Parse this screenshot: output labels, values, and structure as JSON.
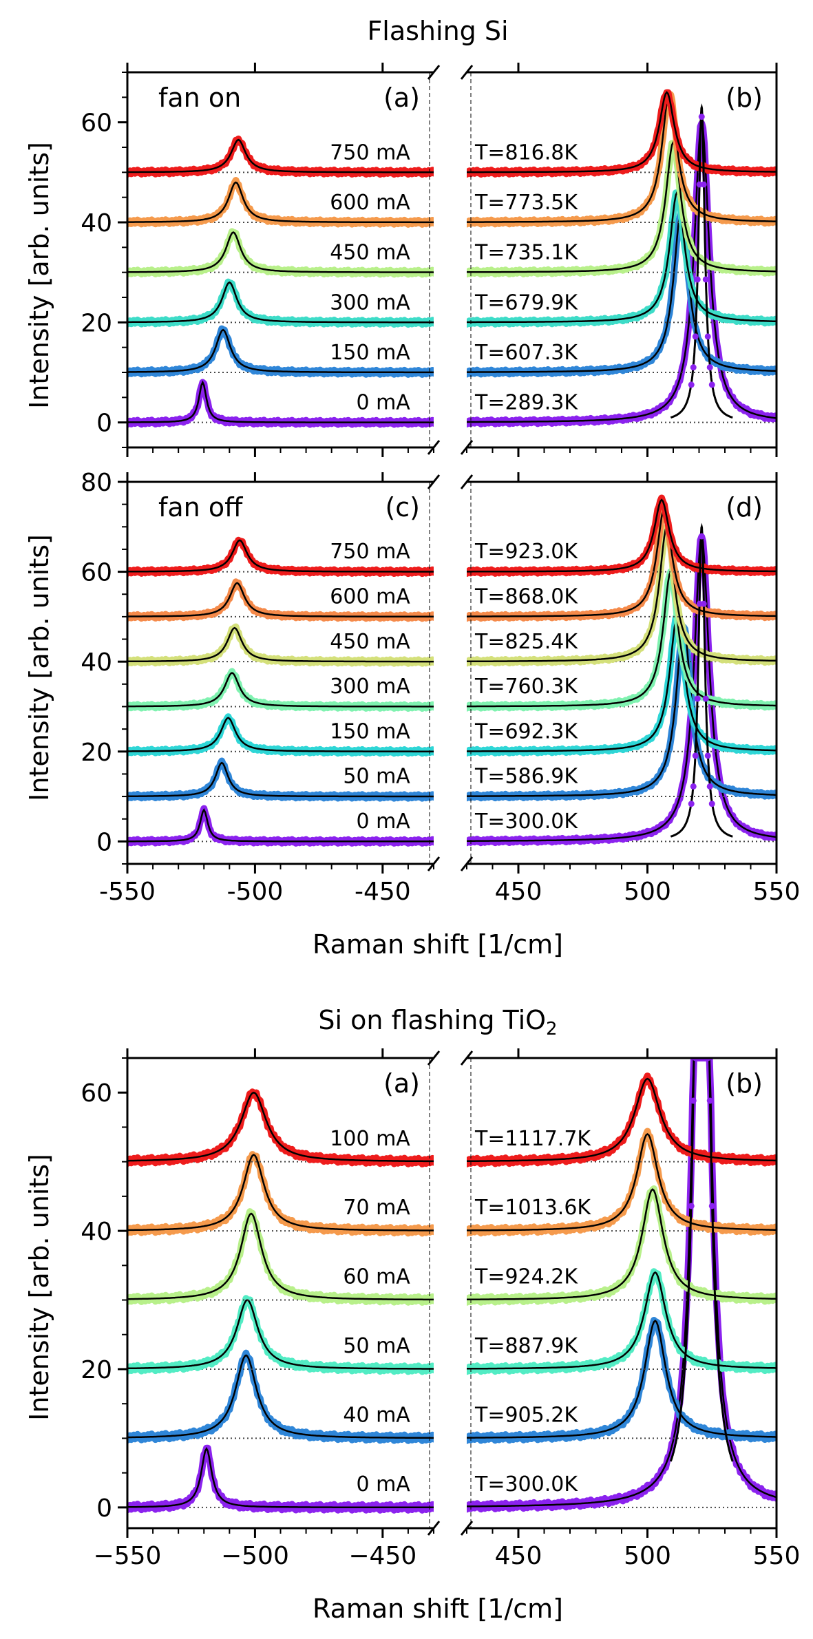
{
  "figure": {
    "top_title": "Flashing Si",
    "bottom_title": "Si on flashing TiO",
    "bottom_title_sub": "2",
    "xlabel": "Raman shift [1/cm]",
    "ylabel": "Intensity [arb. units]"
  },
  "chart_data": [
    {
      "type": "line",
      "group": "Flashing Si",
      "panel": "(a)",
      "note": "fan on",
      "xlim": [
        -550,
        -430
      ],
      "ylim": [
        -5,
        70
      ],
      "yticks": [
        0,
        20,
        40,
        60
      ],
      "xticks": [
        -550,
        -500,
        -450
      ],
      "xticklabels": [
        "-550",
        "-500",
        "-450"
      ],
      "show_xticklabels": false,
      "series": [
        {
          "name": "0 mA",
          "offset": 0,
          "peak": -520.5,
          "hwhm": 1.8,
          "amp": 8,
          "color": "#8b22ee"
        },
        {
          "name": "150 mA",
          "offset": 10,
          "peak": -512.5,
          "hwhm": 3.5,
          "amp": 8.5,
          "color": "#2f86d8"
        },
        {
          "name": "300 mA",
          "offset": 20,
          "peak": -510.0,
          "hwhm": 3.5,
          "amp": 8,
          "color": "#3ddcc8"
        },
        {
          "name": "450 mA",
          "offset": 30,
          "peak": -508.5,
          "hwhm": 3.5,
          "amp": 8,
          "color": "#b8f08a"
        },
        {
          "name": "600 mA",
          "offset": 40,
          "peak": -507.5,
          "hwhm": 3.5,
          "amp": 8,
          "color": "#f59a4c"
        },
        {
          "name": "750 mA",
          "offset": 50,
          "peak": -506.5,
          "hwhm": 3.5,
          "amp": 6.5,
          "color": "#ee1c1c"
        }
      ]
    },
    {
      "type": "line",
      "group": "Flashing Si",
      "panel": "(b)",
      "xlim": [
        430,
        550
      ],
      "ylim": [
        -5,
        70
      ],
      "xticks": [
        450,
        500,
        550
      ],
      "xticklabels": [
        "450",
        "500",
        "550"
      ],
      "show_xticklabels": false,
      "reference_peak": {
        "center": 521,
        "hwhm": 1.5,
        "amp": 63
      },
      "series": [
        {
          "name": "T=289.3K",
          "offset": 0,
          "peak": 521.0,
          "hwhm": 3.5,
          "amp": 60,
          "color": "#8b22ee"
        },
        {
          "name": "T=607.3K",
          "offset": 10,
          "peak": 513.0,
          "hwhm": 3.5,
          "amp": 32,
          "color": "#2f86d8"
        },
        {
          "name": "T=679.9K",
          "offset": 20,
          "peak": 511.5,
          "hwhm": 3.5,
          "amp": 26,
          "color": "#3ddcc8"
        },
        {
          "name": "T=735.1K",
          "offset": 30,
          "peak": 510.0,
          "hwhm": 3.5,
          "amp": 26,
          "color": "#b8f08a"
        },
        {
          "name": "T=773.5K",
          "offset": 40,
          "peak": 508.5,
          "hwhm": 3.5,
          "amp": 26,
          "color": "#f59a4c"
        },
        {
          "name": "T=816.8K",
          "offset": 50,
          "peak": 507.5,
          "hwhm": 3.5,
          "amp": 16,
          "color": "#ee1c1c"
        }
      ]
    },
    {
      "type": "line",
      "group": "Flashing Si",
      "panel": "(c)",
      "note": "fan off",
      "xlim": [
        -550,
        -430
      ],
      "ylim": [
        -5,
        80
      ],
      "yticks": [
        0,
        20,
        40,
        60,
        80
      ],
      "xticks": [
        -550,
        -500,
        -450
      ],
      "xticklabels": [
        "-550",
        "-500",
        "-450"
      ],
      "show_xticklabels": true,
      "series": [
        {
          "name": "0 mA",
          "offset": 0,
          "peak": -520.0,
          "hwhm": 1.8,
          "amp": 7,
          "color": "#8b22ee"
        },
        {
          "name": "50 mA",
          "offset": 10,
          "peak": -513.0,
          "hwhm": 3.0,
          "amp": 7.5,
          "color": "#2f86d8"
        },
        {
          "name": "150 mA",
          "offset": 20,
          "peak": -510.5,
          "hwhm": 3.5,
          "amp": 7.5,
          "color": "#2ed6d6"
        },
        {
          "name": "300 mA",
          "offset": 30,
          "peak": -509.0,
          "hwhm": 3.5,
          "amp": 7.5,
          "color": "#7ff2b0"
        },
        {
          "name": "450 mA",
          "offset": 40,
          "peak": -508.0,
          "hwhm": 3.5,
          "amp": 7.5,
          "color": "#d4e07a"
        },
        {
          "name": "600 mA",
          "offset": 50,
          "peak": -507.0,
          "hwhm": 3.5,
          "amp": 7.5,
          "color": "#f58a4a"
        },
        {
          "name": "750 mA",
          "offset": 60,
          "peak": -506.0,
          "hwhm": 3.5,
          "amp": 7,
          "color": "#ee1c1c"
        }
      ]
    },
    {
      "type": "line",
      "group": "Flashing Si",
      "panel": "(d)",
      "xlim": [
        430,
        550
      ],
      "ylim": [
        -5,
        80
      ],
      "xticks": [
        450,
        500,
        550
      ],
      "xticklabels": [
        "450",
        "500",
        "550"
      ],
      "show_xticklabels": true,
      "reference_peak": {
        "center": 521,
        "hwhm": 1.5,
        "amp": 70
      },
      "series": [
        {
          "name": "T=300.0K",
          "offset": 0,
          "peak": 521.0,
          "hwhm": 3.5,
          "amp": 68,
          "color": "#8b22ee"
        },
        {
          "name": "T=586.9K",
          "offset": 10,
          "peak": 514.0,
          "hwhm": 3.5,
          "amp": 38,
          "color": "#2f86d8"
        },
        {
          "name": "T=692.3K",
          "offset": 20,
          "peak": 511.5,
          "hwhm": 3.5,
          "amp": 30,
          "color": "#2ed6d6"
        },
        {
          "name": "T=760.3K",
          "offset": 30,
          "peak": 509.0,
          "hwhm": 3.5,
          "amp": 30,
          "color": "#7ff2b0"
        },
        {
          "name": "T=825.4K",
          "offset": 40,
          "peak": 507.5,
          "hwhm": 3.5,
          "amp": 30,
          "color": "#d4e07a"
        },
        {
          "name": "T=868.0K",
          "offset": 50,
          "peak": 506.5,
          "hwhm": 3.5,
          "amp": 24,
          "color": "#f58a4a"
        },
        {
          "name": "T=923.0K",
          "offset": 60,
          "peak": 505.5,
          "hwhm": 3.5,
          "amp": 16,
          "color": "#ee1c1c"
        }
      ]
    },
    {
      "type": "line",
      "group": "Si on flashing TiO2",
      "panel": "(a)",
      "xlim": [
        -550,
        -430
      ],
      "ylim": [
        -3,
        65
      ],
      "yticks": [
        0,
        20,
        40,
        60
      ],
      "xticks": [
        -550,
        -500,
        -450
      ],
      "xticklabels": [
        "−550",
        "−500",
        "−450"
      ],
      "show_xticklabels": true,
      "series": [
        {
          "name": "0 mA",
          "offset": 0,
          "peak": -519.0,
          "hwhm": 2.5,
          "amp": 8.5,
          "color": "#8b22ee"
        },
        {
          "name": "40 mA",
          "offset": 10,
          "peak": -503.5,
          "hwhm": 5.0,
          "amp": 12,
          "color": "#2f86d8"
        },
        {
          "name": "50 mA",
          "offset": 20,
          "peak": -503.0,
          "hwhm": 5.0,
          "amp": 10,
          "color": "#52ecc4"
        },
        {
          "name": "60 mA",
          "offset": 30,
          "peak": -501.5,
          "hwhm": 5.0,
          "amp": 12.5,
          "color": "#b8f08a"
        },
        {
          "name": "70 mA",
          "offset": 40,
          "peak": -500.5,
          "hwhm": 5.0,
          "amp": 11,
          "color": "#f59a4c"
        },
        {
          "name": "100 mA",
          "offset": 50,
          "peak": -500.5,
          "hwhm": 6.0,
          "amp": 10,
          "color": "#ee1c1c"
        }
      ]
    },
    {
      "type": "line",
      "group": "Si on flashing TiO2",
      "panel": "(b)",
      "xlim": [
        430,
        550
      ],
      "ylim": [
        -3,
        65
      ],
      "xticks": [
        450,
        500,
        550
      ],
      "xticklabels": [
        "450",
        "500",
        "550"
      ],
      "show_xticklabels": true,
      "reference_peak": {
        "center": 521,
        "hwhm": 2.5,
        "amp": 160
      },
      "series": [
        {
          "name": "T=300.0K",
          "offset": 0,
          "peak": 521.0,
          "hwhm": 3.0,
          "amp": 140,
          "color": "#8b22ee"
        },
        {
          "name": "T=905.2K",
          "offset": 10,
          "peak": 503.0,
          "hwhm": 5.0,
          "amp": 17,
          "color": "#2f86d8"
        },
        {
          "name": "T=887.9K",
          "offset": 20,
          "peak": 503.0,
          "hwhm": 5.0,
          "amp": 14,
          "color": "#52ecc4"
        },
        {
          "name": "T=924.2K",
          "offset": 30,
          "peak": 502.0,
          "hwhm": 5.0,
          "amp": 16,
          "color": "#b8f08a"
        },
        {
          "name": "T=1013.6K",
          "offset": 40,
          "peak": 500.0,
          "hwhm": 5.0,
          "amp": 14,
          "color": "#f59a4c"
        },
        {
          "name": "T=1117.7K",
          "offset": 50,
          "peak": 500.0,
          "hwhm": 6.0,
          "amp": 12,
          "color": "#ee1c1c"
        }
      ]
    }
  ]
}
